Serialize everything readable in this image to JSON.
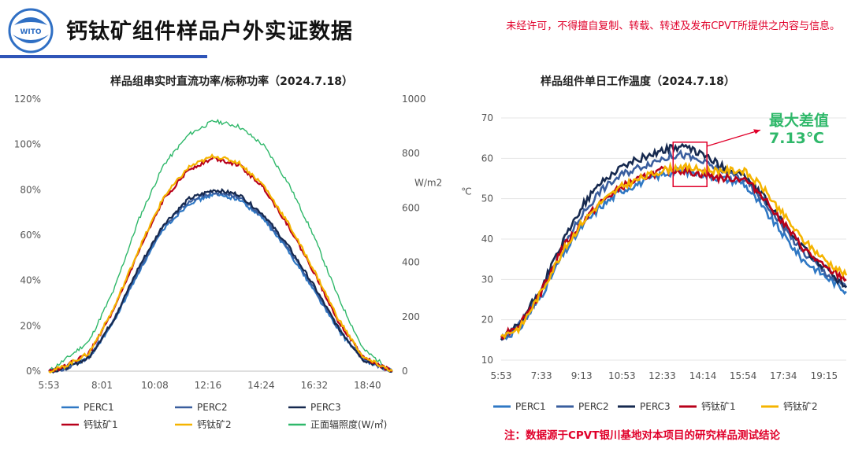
{
  "header": {
    "title": "钙钛矿组件样品户外实证数据",
    "copyright": "未经许可，不得擅自复制、转载、转述及发布CPVT所提供之内容与信息。",
    "logo_text": "WITO"
  },
  "colors": {
    "perc1": "#2f78c4",
    "perc2": "#3a5e9e",
    "perc3": "#16294f",
    "perovskite1": "#b8001a",
    "perovskite2": "#f5b400",
    "irradiance": "#2fb86a",
    "annotation": "#e0002a",
    "max_diff_text": "#2fb86a"
  },
  "chart_data": [
    {
      "type": "line",
      "title": "样品组串实时直流功率/标称功率（2024.7.18）",
      "x_ticks": [
        "5:53",
        "8:01",
        "10:08",
        "12:16",
        "14:24",
        "16:32",
        "18:40"
      ],
      "x_range": [
        "5:53",
        "19:40"
      ],
      "ylim": [
        0,
        120
      ],
      "y_ticks": [
        "0%",
        "20%",
        "40%",
        "60%",
        "80%",
        "100%",
        "120%"
      ],
      "y2lim": [
        0,
        1000
      ],
      "y2_ticks": [
        "0",
        "200",
        "400",
        "600",
        "800",
        "1000"
      ],
      "y2label": "W/m2",
      "grid": false,
      "legend_position": "bottom",
      "series": [
        {
          "name": "PERC1",
          "axis": "left",
          "key": "perc1",
          "x": [
            "5:53",
            "6:30",
            "7:30",
            "8:30",
            "9:30",
            "10:30",
            "11:30",
            "12:30",
            "13:30",
            "14:30",
            "15:30",
            "16:30",
            "17:30",
            "18:30",
            "19:40"
          ],
          "y": [
            0,
            1,
            6,
            22,
            44,
            63,
            74,
            78,
            76,
            67,
            53,
            36,
            18,
            5,
            0
          ]
        },
        {
          "name": "PERC2",
          "axis": "left",
          "key": "perc2",
          "x": [
            "5:53",
            "6:30",
            "7:30",
            "8:30",
            "9:30",
            "10:30",
            "11:30",
            "12:30",
            "13:30",
            "14:30",
            "15:30",
            "16:30",
            "17:30",
            "18:30",
            "19:40"
          ],
          "y": [
            0,
            1,
            6,
            23,
            45,
            64,
            75,
            79,
            77,
            68,
            54,
            37,
            19,
            5,
            0
          ]
        },
        {
          "name": "PERC3",
          "axis": "left",
          "key": "perc3",
          "x": [
            "5:53",
            "6:30",
            "7:30",
            "8:30",
            "9:30",
            "10:30",
            "11:30",
            "12:30",
            "13:30",
            "14:30",
            "15:30",
            "16:30",
            "17:30",
            "18:30",
            "19:40"
          ],
          "y": [
            0,
            1,
            6,
            23,
            46,
            65,
            76,
            80,
            78,
            69,
            55,
            38,
            19,
            5,
            0
          ]
        },
        {
          "name": "钙钛矿1",
          "axis": "left",
          "key": "perovskite1",
          "x": [
            "5:53",
            "6:30",
            "7:30",
            "8:30",
            "9:30",
            "10:30",
            "11:30",
            "12:30",
            "13:30",
            "14:30",
            "15:30",
            "16:30",
            "17:30",
            "18:30",
            "19:40"
          ],
          "y": [
            0,
            2,
            8,
            27,
            53,
            76,
            89,
            94,
            91,
            81,
            64,
            44,
            22,
            6,
            0
          ]
        },
        {
          "name": "钙钛矿2",
          "axis": "left",
          "key": "perovskite2",
          "x": [
            "5:53",
            "6:30",
            "7:30",
            "8:30",
            "9:30",
            "10:30",
            "11:30",
            "12:30",
            "13:30",
            "14:30",
            "15:30",
            "16:30",
            "17:30",
            "18:30",
            "19:40"
          ],
          "y": [
            0,
            2,
            8,
            28,
            54,
            77,
            90,
            95,
            92,
            82,
            65,
            45,
            23,
            6,
            0
          ]
        },
        {
          "name": "正面辐照度(W/㎡)",
          "axis": "right",
          "key": "irradiance",
          "x": [
            "5:53",
            "6:30",
            "7:30",
            "8:30",
            "9:30",
            "10:30",
            "11:30",
            "12:30",
            "13:30",
            "14:30",
            "15:30",
            "16:30",
            "17:30",
            "18:30",
            "19:40"
          ],
          "y": [
            0,
            40,
            110,
            300,
            560,
            760,
            870,
            920,
            900,
            830,
            690,
            500,
            270,
            80,
            0
          ]
        }
      ]
    },
    {
      "type": "line",
      "title": "样品组件单日工作温度（2024.7.18）",
      "x_ticks": [
        "5:53",
        "7:33",
        "9:13",
        "10:53",
        "12:33",
        "14:14",
        "15:54",
        "17:34",
        "19:15"
      ],
      "x_range": [
        "5:53",
        "20:10"
      ],
      "ylim": [
        10,
        70
      ],
      "y_ticks": [
        "10",
        "20",
        "30",
        "40",
        "50",
        "60",
        "70"
      ],
      "ylabel": "℃",
      "grid": true,
      "legend_position": "bottom",
      "annotation": {
        "label": "最大差值",
        "value": "7.13℃"
      },
      "series": [
        {
          "name": "PERC1",
          "key": "perc1",
          "x": [
            "5:53",
            "6:40",
            "7:33",
            "8:20",
            "9:13",
            "10:00",
            "10:53",
            "11:40",
            "12:33",
            "13:20",
            "14:14",
            "15:00",
            "15:54",
            "16:40",
            "17:34",
            "18:20",
            "19:15",
            "20:10"
          ],
          "y": [
            15,
            18,
            26,
            35,
            43,
            48,
            52,
            54,
            56,
            57,
            56,
            55,
            54,
            48,
            41,
            35,
            31,
            27
          ]
        },
        {
          "name": "PERC2",
          "key": "perc2",
          "x": [
            "5:53",
            "6:40",
            "7:33",
            "8:20",
            "9:13",
            "10:00",
            "10:53",
            "11:40",
            "12:33",
            "13:20",
            "14:14",
            "15:00",
            "15:54",
            "16:40",
            "17:34",
            "18:20",
            "19:15",
            "20:10"
          ],
          "y": [
            15,
            19,
            27,
            37,
            46,
            52,
            56,
            58,
            60,
            61,
            59,
            57,
            55,
            50,
            43,
            37,
            32,
            28
          ]
        },
        {
          "name": "PERC3",
          "key": "perc3",
          "x": [
            "5:53",
            "6:40",
            "7:33",
            "8:20",
            "9:13",
            "10:00",
            "10:53",
            "11:40",
            "12:33",
            "13:20",
            "14:14",
            "15:00",
            "15:54",
            "16:40",
            "17:34",
            "18:20",
            "19:15",
            "20:10"
          ],
          "y": [
            15,
            19,
            28,
            38,
            48,
            54,
            58,
            60,
            62,
            63,
            61,
            58,
            56,
            51,
            44,
            38,
            33,
            28
          ]
        },
        {
          "name": "钙钛矿1",
          "key": "perovskite1",
          "x": [
            "5:53",
            "6:40",
            "7:33",
            "8:20",
            "9:13",
            "10:00",
            "10:53",
            "11:40",
            "12:33",
            "13:20",
            "14:14",
            "15:00",
            "15:54",
            "16:40",
            "17:34",
            "18:20",
            "19:15",
            "20:10"
          ],
          "y": [
            16,
            19,
            27,
            37,
            44,
            49,
            53,
            55,
            57,
            57,
            56,
            55,
            55,
            51,
            44,
            38,
            33,
            30
          ]
        },
        {
          "name": "钙钛矿2",
          "key": "perovskite2",
          "x": [
            "5:53",
            "6:40",
            "7:33",
            "8:20",
            "9:13",
            "10:00",
            "10:53",
            "11:40",
            "12:33",
            "13:20",
            "14:14",
            "15:00",
            "15:54",
            "16:40",
            "17:34",
            "18:20",
            "19:15",
            "20:10"
          ],
          "y": [
            16,
            18,
            27,
            36,
            44,
            49,
            53,
            55,
            57,
            58,
            57,
            57,
            57,
            53,
            46,
            40,
            35,
            31
          ]
        }
      ]
    }
  ],
  "note": "注：数据源于CPVT银川基地对本项目的研究样品测试结论"
}
